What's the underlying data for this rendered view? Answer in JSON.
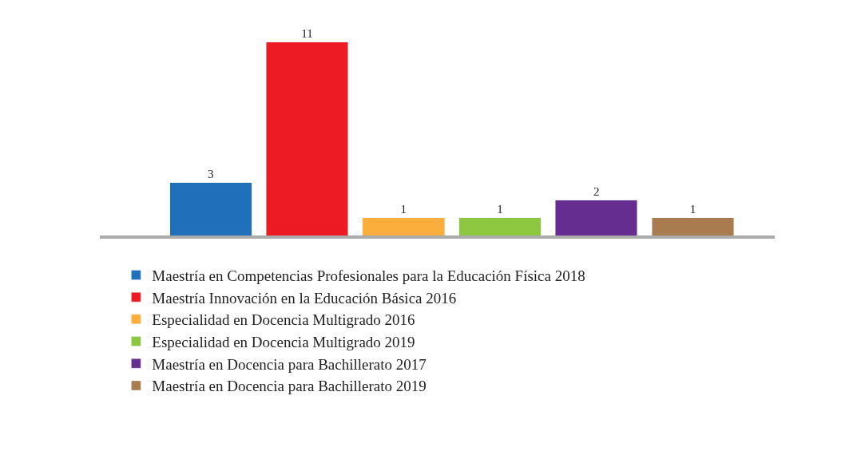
{
  "chart_data": {
    "type": "bar",
    "categories": [
      null,
      null,
      null,
      null,
      null,
      null
    ],
    "series": [
      {
        "name": "Maestría en Competencias Profesionales para la Educación Física 2018",
        "color": "#1f6fba",
        "values": [
          3,
          null,
          null,
          null,
          null,
          null
        ]
      },
      {
        "name": "Maestría Innovación en la Educación Básica 2016",
        "color": "#ed1c24",
        "values": [
          null,
          11,
          null,
          null,
          null,
          null
        ]
      },
      {
        "name": "Especialidad en Docencia Multigrado 2016",
        "color": "#fbae3c",
        "values": [
          null,
          null,
          1,
          null,
          null,
          null
        ]
      },
      {
        "name": "Especialidad en Docencia Multigrado 2019",
        "color": "#8dc63f",
        "values": [
          null,
          null,
          null,
          1,
          null,
          null
        ]
      },
      {
        "name": "Maestría en Docencia para Bachillerato 2017",
        "color": "#662d91",
        "values": [
          null,
          null,
          null,
          null,
          2,
          null
        ]
      },
      {
        "name": "Maestría en Docencia para Bachillerato 2019",
        "color": "#a97c50",
        "values": [
          null,
          null,
          null,
          null,
          null,
          1
        ]
      }
    ],
    "stacked": true,
    "data_labels": true,
    "legend": "bottom"
  }
}
